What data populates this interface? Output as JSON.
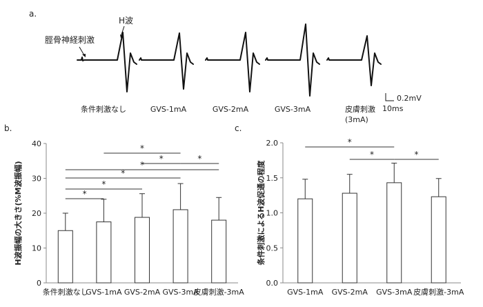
{
  "panel_a": {
    "label": "a.",
    "h_wave_label": "H波",
    "stim_label": "脛骨神経刺激",
    "conditions": [
      "条件刺激なし",
      "GVS-1mA",
      "GVS-2mA",
      "GVS-3mA",
      "皮膚刺激\n(3mA)"
    ],
    "scale_amplitude": "0.2mV",
    "scale_time": "10ms"
  },
  "chart_data": [
    {
      "label": "b.",
      "type": "bar",
      "ylabel": "H波振幅の大きさ(%M波振幅)",
      "categories": [
        "条件刺激なし",
        "GVS-1mA",
        "GVS-2mA",
        "GVS-3mA",
        "皮膚刺激-3mA"
      ],
      "values": [
        15.0,
        17.5,
        18.8,
        21.0,
        18.0
      ],
      "errors": [
        5.0,
        6.5,
        6.8,
        7.5,
        6.5
      ],
      "ylim": [
        0,
        40
      ],
      "yticks": [
        0,
        10,
        20,
        30,
        40
      ],
      "significance": [
        {
          "from": 0,
          "to": 1,
          "label": "*"
        },
        {
          "from": 0,
          "to": 2,
          "label": "*"
        },
        {
          "from": 0,
          "to": 3,
          "label": "*"
        },
        {
          "from": 0,
          "to": 4,
          "label": "*"
        },
        {
          "from": 3,
          "to": 4,
          "label": "*"
        },
        {
          "from": 2,
          "to": 3,
          "label": "*"
        },
        {
          "from": 1,
          "to": 3,
          "label": "*"
        }
      ]
    },
    {
      "label": "c.",
      "type": "bar",
      "ylabel": "条件刺激によるH波促通の程度",
      "categories": [
        "GVS-1mA",
        "GVS-2mA",
        "GVS-3mA",
        "皮膚刺激-3mA"
      ],
      "values": [
        1.2,
        1.28,
        1.43,
        1.23
      ],
      "errors": [
        0.28,
        0.27,
        0.28,
        0.26
      ],
      "ylim": [
        0.0,
        2.0
      ],
      "yticks": [
        "0.0",
        "0.5",
        "1.0",
        "1.5",
        "2.0"
      ],
      "significance": [
        {
          "from": 2,
          "to": 3,
          "label": "*"
        },
        {
          "from": 1,
          "to": 2,
          "label": "*"
        },
        {
          "from": 0,
          "to": 2,
          "label": "*"
        }
      ]
    }
  ]
}
